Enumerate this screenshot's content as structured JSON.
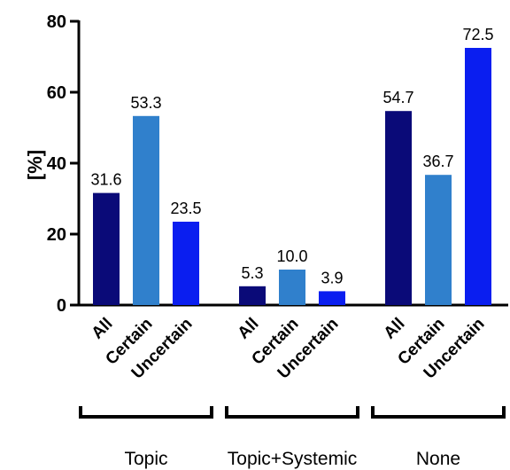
{
  "chart_data": {
    "type": "bar",
    "title": "",
    "xlabel": "",
    "ylabel": "[%]",
    "ylim": [
      0,
      80
    ],
    "yticks": [
      0,
      20,
      40,
      60,
      80
    ],
    "grid": false,
    "groups": [
      {
        "name": "Topic",
        "bars": [
          {
            "category": "All",
            "value": 31.6,
            "label": "31.6",
            "color": "#0a0a78"
          },
          {
            "category": "Certain",
            "value": 53.3,
            "label": "53.3",
            "color": "#3080cc"
          },
          {
            "category": "Uncertain",
            "value": 23.5,
            "label": "23.5",
            "color": "#0a1ef0"
          }
        ]
      },
      {
        "name": "Topic+Systemic",
        "bars": [
          {
            "category": "All",
            "value": 5.3,
            "label": "5.3",
            "color": "#0a0a78"
          },
          {
            "category": "Certain",
            "value": 10.0,
            "label": "10.0",
            "color": "#3080cc"
          },
          {
            "category": "Uncertain",
            "value": 3.9,
            "label": "3.9",
            "color": "#0a1ef0"
          }
        ]
      },
      {
        "name": "None",
        "bars": [
          {
            "category": "All",
            "value": 54.7,
            "label": "54.7",
            "color": "#0a0a78"
          },
          {
            "category": "Certain",
            "value": 36.7,
            "label": "36.7",
            "color": "#3080cc"
          },
          {
            "category": "Uncertain",
            "value": 72.5,
            "label": "72.5",
            "color": "#0a1ef0"
          }
        ]
      }
    ]
  }
}
